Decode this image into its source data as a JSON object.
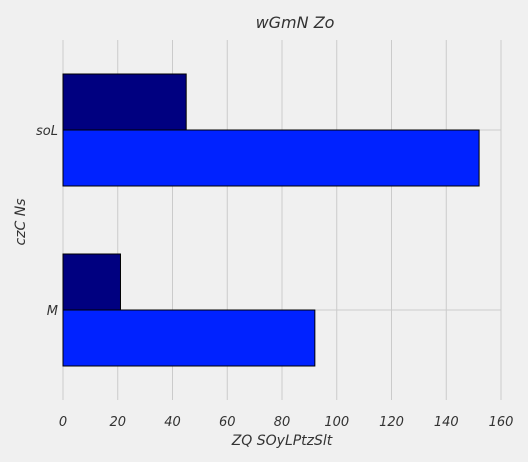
{
  "chart_data": {
    "type": "bar",
    "orientation": "horizontal",
    "title": "wGmN Zo",
    "xlabel": "ZQ SOyLPtzSlt",
    "ylabel": "czC Ns",
    "categories": [
      "M",
      "soL"
    ],
    "series": [
      {
        "color": "#0022ff",
        "values": [
          92,
          152
        ]
      },
      {
        "color": "#000080",
        "values": [
          21,
          45
        ]
      }
    ],
    "xlim": [
      0,
      160
    ],
    "xticks": [
      0,
      20,
      40,
      60,
      80,
      100,
      120,
      140,
      160
    ],
    "grid": true,
    "legend": "none"
  }
}
